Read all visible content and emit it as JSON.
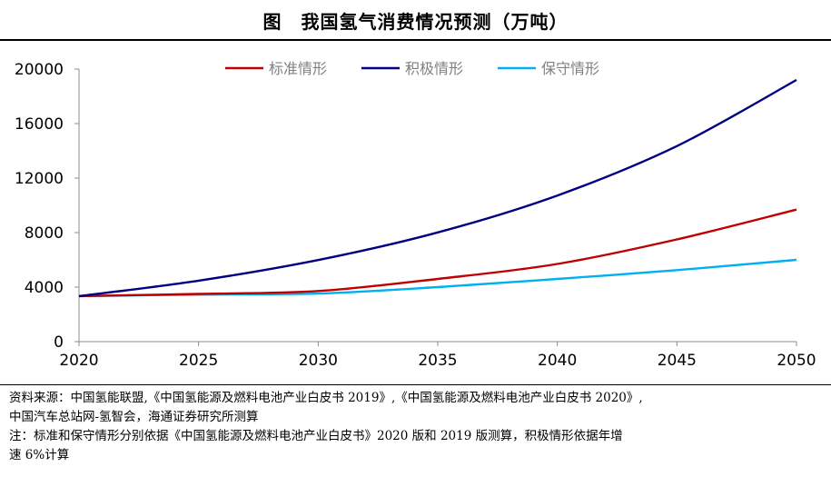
{
  "chart_data": {
    "type": "line",
    "title": "图　我国氢气消费情况预测（万吨）",
    "xlabel": "",
    "ylabel": "",
    "xlim": [
      2020,
      2050
    ],
    "ylim": [
      0,
      20000
    ],
    "x_ticks": [
      2020,
      2025,
      2030,
      2035,
      2040,
      2045,
      2050
    ],
    "y_ticks": [
      0,
      4000,
      8000,
      12000,
      16000,
      20000
    ],
    "grid": false,
    "legend_position": "top",
    "x": [
      2020,
      2025,
      2030,
      2035,
      2040,
      2045,
      2050
    ],
    "series": [
      {
        "name": "标准情形",
        "color": "#C00000",
        "values": [
          3342,
          3500,
          3715,
          4600,
          5700,
          7500,
          9690
        ]
      },
      {
        "name": "积极情形",
        "color": "#000080",
        "values": [
          3342,
          4470,
          5990,
          8010,
          10720,
          14350,
          19200
        ]
      },
      {
        "name": "保守情形",
        "color": "#00B0F0",
        "values": [
          3342,
          3450,
          3530,
          4000,
          4600,
          5250,
          6000
        ]
      }
    ]
  },
  "notes": {
    "source_line1": "资料来源：中国氢能联盟,《中国氢能源及燃料电池产业白皮书 2019》,《中国氢能源及燃料电池产业白皮书 2020》,",
    "source_line2": "中国汽车总站网-氢智会，海通证券研究所测算",
    "note_line1": "注：标准和保守情形分别依据《中国氢能源及燃料电池产业白皮书》2020 版和 2019 版测算，积极情形依据年增",
    "note_line2": "速 6%计算"
  }
}
